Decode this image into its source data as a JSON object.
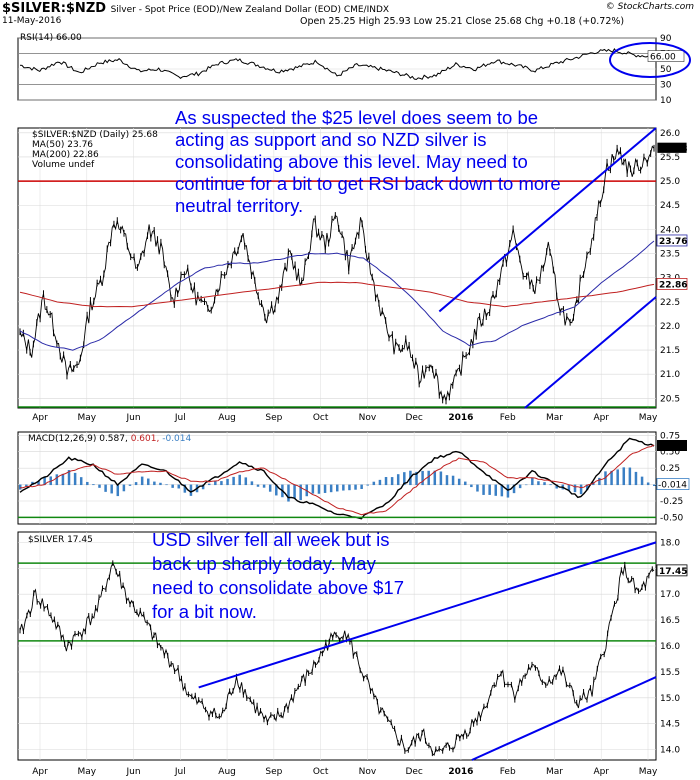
{
  "header": {
    "symbol": "$SILVER:$NZD",
    "description": "Silver - Spot Price (EOD)/New Zealand Dollar (EOD)  CME/INDX",
    "date": "11-May-2016",
    "ohlc": "Open 25.25  High 25.93  Low 25.21  Close 25.68  Chg +0.18 (+0.72%)",
    "brand": "© StockCharts.com"
  },
  "colors": {
    "price": "#000000",
    "ma50": "#2a2aa8",
    "ma200": "#c02020",
    "support": "#cc0000",
    "green_line": "#118811",
    "annotation": "#0000ee",
    "histogram": "#3a7fc4"
  },
  "x_axis": {
    "months": [
      "Apr",
      "May",
      "Jun",
      "Jul",
      "Aug",
      "Sep",
      "Oct",
      "Nov",
      "Dec",
      "2016",
      "Feb",
      "Mar",
      "Apr",
      "May"
    ]
  },
  "chart_data": [
    {
      "type": "line",
      "panel": "rsi",
      "legend": "RSI(14) 66.00",
      "ylim": [
        10,
        90
      ],
      "yticks": [
        90,
        70,
        50,
        30,
        10
      ],
      "last_value_label": "66.00",
      "series": [
        {
          "name": "RSI(14)",
          "values": [
            55,
            48,
            60,
            45,
            58,
            62,
            47,
            50,
            40,
            44,
            57,
            62,
            55,
            47,
            52,
            60,
            41,
            55,
            51,
            45,
            38,
            42,
            56,
            50,
            61,
            55,
            48,
            57,
            64,
            72,
            74,
            68,
            66
          ]
        }
      ]
    },
    {
      "type": "line",
      "panel": "price",
      "legend": [
        "$SILVER:$NZD (Daily) 25.68",
        "MA(50) 23.76",
        "MA(200) 22.86",
        "Volume undef"
      ],
      "ylim": [
        20.3,
        26.1
      ],
      "yticks": [
        "26.0",
        "25.5",
        "25.0",
        "24.5",
        "24.0",
        "23.5",
        "23.0",
        "22.5",
        "22.0",
        "21.5",
        "21.0",
        "20.5"
      ],
      "price_labels": [
        "25.68",
        "23.76",
        "22.86"
      ],
      "series": [
        {
          "name": "$SILVER:$NZD",
          "values": [
            21.8,
            21.5,
            22.6,
            21.9,
            21.0,
            21.2,
            22.4,
            23.0,
            24.2,
            23.8,
            23.1,
            24.0,
            23.6,
            22.5,
            23.2,
            22.6,
            22.3,
            22.9,
            23.4,
            23.9,
            22.9,
            22.2,
            22.6,
            23.5,
            22.8,
            24.1,
            23.7,
            24.3,
            23.3,
            24.1,
            23.0,
            22.1,
            21.5,
            21.6,
            20.9,
            21.3,
            20.5,
            20.8,
            21.4,
            22.0,
            22.4,
            23.1,
            23.9,
            23.0,
            22.8,
            23.6,
            22.4,
            21.9,
            23.2,
            24.1,
            25.3,
            25.6,
            25.2,
            25.4,
            25.68
          ]
        },
        {
          "name": "MA(50)",
          "values": [
            21.9,
            21.6,
            21.5,
            21.7,
            22.1,
            22.5,
            22.9,
            23.2,
            23.3,
            23.3,
            23.4,
            23.5,
            23.5,
            23.4,
            23.0,
            22.5,
            21.9,
            21.6,
            21.7,
            22.0,
            22.2,
            22.4,
            22.9,
            23.3,
            23.76
          ]
        },
        {
          "name": "MA(200)",
          "values": [
            22.7,
            22.5,
            22.4,
            22.4,
            22.5,
            22.6,
            22.7,
            22.8,
            22.9,
            22.9,
            22.8,
            22.7,
            22.5,
            22.4,
            22.5,
            22.6,
            22.7,
            22.86
          ]
        }
      ]
    },
    {
      "type": "line",
      "panel": "macd",
      "legend": {
        "name": "MACD(12,26,9)",
        "macd": "0.587",
        "signal": "0.601",
        "hist": "-0.014"
      },
      "ylim": [
        -0.6,
        0.8
      ],
      "yticks": [
        "0.75",
        "0.50",
        "0.25",
        "0.00",
        "-0.25",
        "-0.50"
      ],
      "series": [
        {
          "name": "MACD",
          "values": [
            -0.1,
            0.1,
            0.4,
            0.3,
            0.0,
            0.3,
            0.2,
            -0.1,
            0.1,
            0.35,
            0.2,
            -0.2,
            -0.3,
            -0.45,
            -0.5,
            -0.3,
            0.1,
            0.4,
            0.5,
            0.2,
            -0.1,
            0.2,
            0.0,
            -0.2,
            0.3,
            0.7,
            0.587
          ]
        },
        {
          "name": "Signal",
          "values": [
            -0.05,
            0.0,
            0.2,
            0.3,
            0.15,
            0.2,
            0.2,
            0.05,
            0.05,
            0.2,
            0.25,
            0.05,
            -0.15,
            -0.35,
            -0.45,
            -0.4,
            -0.1,
            0.2,
            0.4,
            0.35,
            0.1,
            0.1,
            0.05,
            -0.05,
            0.1,
            0.45,
            0.601
          ]
        }
      ]
    },
    {
      "type": "line",
      "panel": "usd_silver",
      "legend": "$SILVER 17.45",
      "ylim": [
        13.8,
        18.2
      ],
      "yticks": [
        "18.0",
        "17.5",
        "17.0",
        "16.5",
        "16.0",
        "15.5",
        "15.0",
        "14.5",
        "14.0"
      ],
      "price_label": "17.45",
      "series": [
        {
          "name": "$SILVER",
          "values": [
            16.2,
            17.0,
            16.6,
            16.0,
            16.3,
            16.7,
            17.6,
            16.9,
            16.5,
            16.0,
            15.6,
            15.0,
            14.8,
            14.6,
            15.4,
            14.9,
            14.5,
            14.7,
            15.2,
            15.6,
            16.1,
            16.3,
            15.6,
            14.9,
            14.4,
            14.0,
            14.3,
            13.9,
            14.1,
            14.4,
            14.8,
            15.5,
            15.1,
            15.6,
            15.3,
            15.5,
            14.9,
            15.1,
            16.2,
            17.5,
            17.0,
            17.45
          ]
        }
      ]
    }
  ],
  "annotations": {
    "price": [
      "As suspected the $25 level does seem to be",
      "acting as support and so NZD silver is",
      "consolidating above this level. May need to",
      "continue for a bit to get RSI back down to more",
      "neutral territory."
    ],
    "usd": [
      "USD silver fell all week but is",
      "back up sharply today.  May",
      "need to consolidate above $17",
      "for a bit now."
    ]
  }
}
